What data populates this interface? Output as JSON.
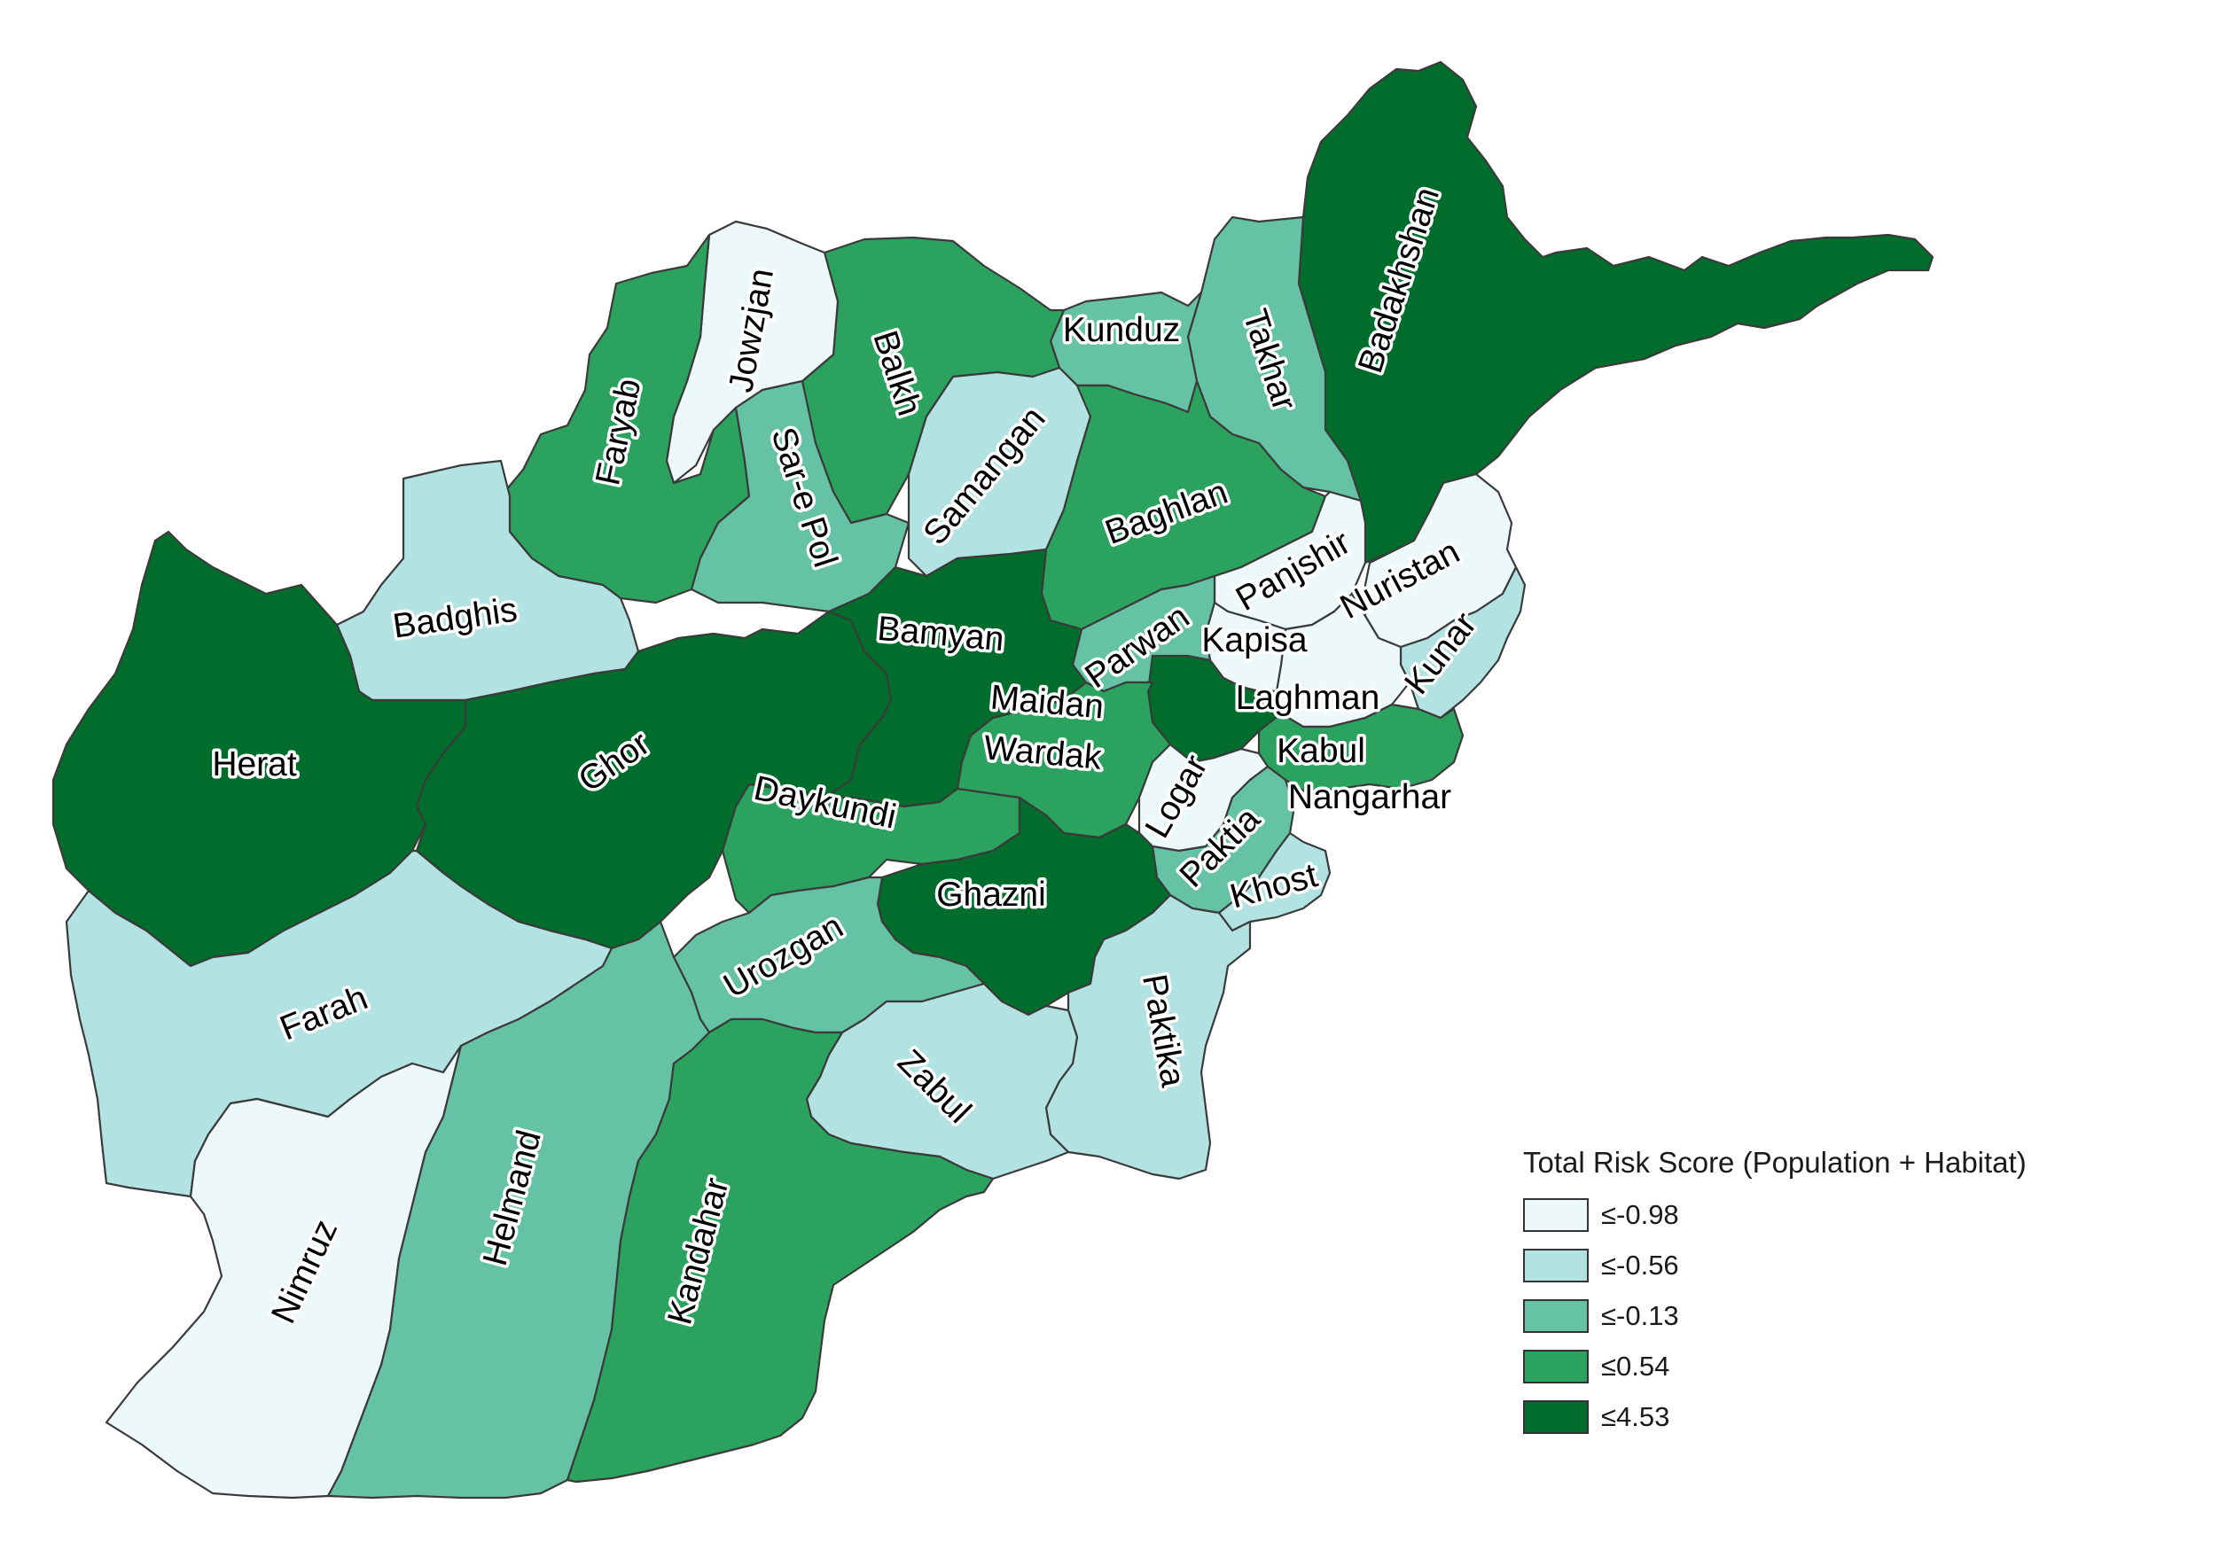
{
  "map": {
    "legend": {
      "title": "Total Risk Score (Population + Habitat)",
      "classes": [
        {
          "label": "≤-0.98",
          "color": "#edf8fb"
        },
        {
          "label": "≤-0.56",
          "color": "#b2e2e2"
        },
        {
          "label": "≤-0.13",
          "color": "#66c2a4"
        },
        {
          "label": "≤0.54",
          "color": "#2ca25f"
        },
        {
          "label": "≤4.53",
          "color": "#006d2c"
        }
      ]
    },
    "provinces": [
      {
        "id": "badakhshan",
        "name": "Badakhshan",
        "class": 4
      },
      {
        "id": "takhar",
        "name": "Takhar",
        "class": 2
      },
      {
        "id": "kunduz",
        "name": "Kunduz",
        "class": 2
      },
      {
        "id": "balkh",
        "name": "Balkh",
        "class": 3
      },
      {
        "id": "jowzjan",
        "name": "Jowzjan",
        "class": 0
      },
      {
        "id": "faryab",
        "name": "Faryab",
        "class": 3
      },
      {
        "id": "sare-pol",
        "name": "Sar-e Pol",
        "class": 2
      },
      {
        "id": "samangan",
        "name": "Samangan",
        "class": 1
      },
      {
        "id": "baghlan",
        "name": "Baghlan",
        "class": 3
      },
      {
        "id": "panjshir",
        "name": "Panjshir",
        "class": 0
      },
      {
        "id": "nuristan",
        "name": "Nuristan",
        "class": 0
      },
      {
        "id": "kunar",
        "name": "Kunar",
        "class": 1
      },
      {
        "id": "laghman",
        "name": "Laghman",
        "class": 0
      },
      {
        "id": "kapisa",
        "name": "Kapisa",
        "class": 0
      },
      {
        "id": "parwan",
        "name": "Parwan",
        "class": 2
      },
      {
        "id": "kabul",
        "name": "Kabul",
        "class": 4
      },
      {
        "id": "nangarhar",
        "name": "Nangarhar",
        "class": 3
      },
      {
        "id": "badghis",
        "name": "Badghis",
        "class": 1
      },
      {
        "id": "herat",
        "name": "Herat",
        "class": 4
      },
      {
        "id": "ghor",
        "name": "Ghor",
        "class": 4
      },
      {
        "id": "bamyan",
        "name": "Bamyan",
        "class": 4
      },
      {
        "id": "maidan-wardak",
        "name": "Maidan Wardak",
        "class": 3
      },
      {
        "id": "logar",
        "name": "Logar",
        "class": 0
      },
      {
        "id": "paktia",
        "name": "Paktia",
        "class": 2
      },
      {
        "id": "khost",
        "name": "Khost",
        "class": 1
      },
      {
        "id": "daykundi",
        "name": "Daykundi",
        "class": 3
      },
      {
        "id": "ghazni",
        "name": "Ghazni",
        "class": 4
      },
      {
        "id": "paktika",
        "name": "Paktika",
        "class": 1
      },
      {
        "id": "urozgan",
        "name": "Urozgan",
        "class": 2
      },
      {
        "id": "zabul",
        "name": "Zabul",
        "class": 1
      },
      {
        "id": "farah",
        "name": "Farah",
        "class": 1
      },
      {
        "id": "nimruz",
        "name": "Nimruz",
        "class": 0
      },
      {
        "id": "helmand",
        "name": "Helmand",
        "class": 2
      },
      {
        "id": "kandahar",
        "name": "Kandahar",
        "class": 3
      }
    ]
  }
}
